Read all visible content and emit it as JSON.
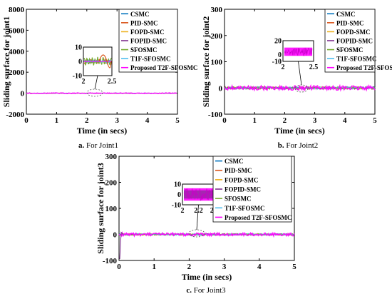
{
  "legend_entries": [
    "CSMC",
    "PID-SMC",
    "FOPD-SMC",
    "FOPID-SMC",
    "SFOSMC",
    "T1F-SFOSMC",
    "Proposed T2F-SFOSMC"
  ],
  "colors": {
    "CSMC": "#0072BD",
    "PID-SMC": "#D95319",
    "FOPD-SMC": "#EDB120",
    "FOPID-SMC": "#7E2F8E",
    "SFOSMC": "#77AC30",
    "T1F-SFOSMC": "#4DBEEE",
    "Proposed T2F-SFOSMC": "#FF00FF"
  },
  "chart_data": [
    {
      "type": "line",
      "caption_letter": "a.",
      "caption_text": "For Joint1",
      "xlabel": "Time (in secs)",
      "ylabel": "Sliding surface for joint1",
      "xlim": [
        0,
        5
      ],
      "ylim": [
        -2000,
        8000
      ],
      "xticks": [
        "0",
        "1",
        "2",
        "3",
        "4",
        "5"
      ],
      "yticks": [
        "-2000",
        "0",
        "2000",
        "4000",
        "6000",
        "8000"
      ],
      "legend_placement": "top-right",
      "series_value_at_rest": 0,
      "inset": {
        "xlim": [
          2,
          2.5
        ],
        "ylim": [
          -10,
          10
        ],
        "xticks": [
          "2",
          "2.5"
        ],
        "yticks": [
          "10",
          "0",
          "-10"
        ]
      }
    },
    {
      "type": "line",
      "caption_letter": "b.",
      "caption_text": "For Joint2",
      "xlabel": "Time (in secs)",
      "ylabel": "Sliding surface for joint2",
      "xlim": [
        0,
        5
      ],
      "ylim": [
        -100,
        300
      ],
      "xticks": [
        "0",
        "1",
        "2",
        "3",
        "4",
        "5"
      ],
      "yticks": [
        "-100",
        "0",
        "100",
        "200",
        "300"
      ],
      "legend_placement": "top-right",
      "series_value_at_rest": 0,
      "inset": {
        "xlim": [
          2,
          2.5
        ],
        "ylim": [
          -10,
          20
        ],
        "xticks": [
          "2",
          "2.5"
        ],
        "yticks": [
          "20",
          "0",
          "-10"
        ]
      }
    },
    {
      "type": "line",
      "caption_letter": "c.",
      "caption_text": "For Joint3",
      "xlabel": "Time (in secs)",
      "ylabel": "Sliding surface for joint3",
      "xlim": [
        0,
        5
      ],
      "ylim": [
        -100,
        300
      ],
      "xticks": [
        "0",
        "1",
        "2",
        "3",
        "4",
        "5"
      ],
      "yticks": [
        "-100",
        "0",
        "100",
        "200",
        "300"
      ],
      "legend_placement": "top-right",
      "series_value_at_rest": 0,
      "inset": {
        "xlim": [
          2,
          2.4
        ],
        "ylim": [
          -10,
          10
        ],
        "xticks": [
          "2",
          "2.2",
          "2.4"
        ],
        "yticks": [
          "10",
          "0",
          "-10"
        ]
      }
    }
  ]
}
